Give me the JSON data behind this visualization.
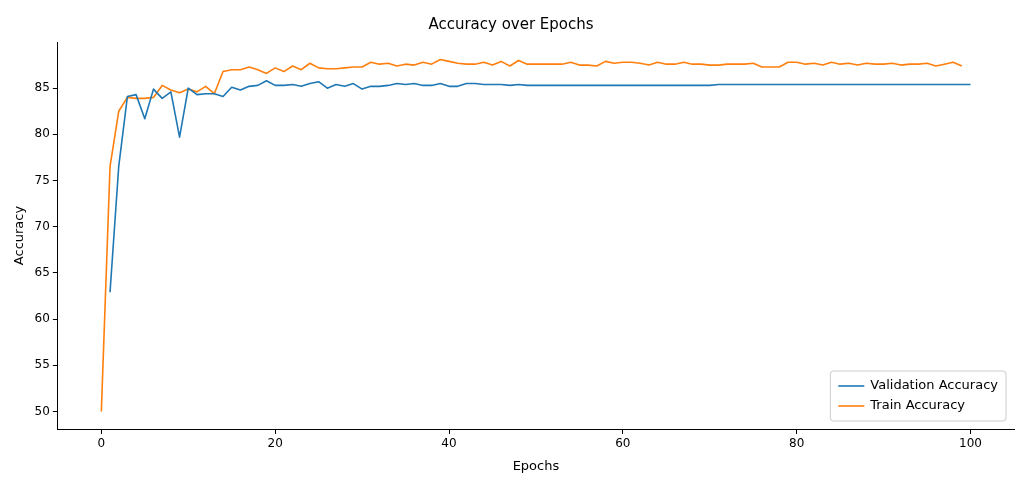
{
  "chart_data": {
    "type": "line",
    "title": "Accuracy over Epochs",
    "xlabel": "Epochs",
    "ylabel": "Accuracy",
    "xlim": [
      -5,
      105
    ],
    "xticks": [
      0,
      20,
      40,
      60,
      80,
      100
    ],
    "ylim": [
      48.1,
      90
    ],
    "yticks": [
      50,
      55,
      60,
      65,
      70,
      75,
      80,
      85
    ],
    "grid": false,
    "legend": "bottom right",
    "marker": "none",
    "line_style": "solid",
    "series": [
      {
        "name": "Validation Accuracy",
        "color": "#1f77b4",
        "x": [
          1,
          2,
          3,
          4,
          5,
          6,
          7,
          8,
          9,
          10,
          11,
          12,
          13,
          14,
          15,
          16,
          17,
          18,
          19,
          20,
          21,
          22,
          23,
          24,
          25,
          26,
          27,
          28,
          29,
          30,
          31,
          32,
          33,
          34,
          35,
          36,
          37,
          38,
          39,
          40,
          41,
          42,
          43,
          44,
          45,
          46,
          47,
          48,
          49,
          50,
          60,
          70,
          71,
          80,
          90,
          100
        ],
        "values": [
          62.9,
          76.5,
          84.1,
          84.3,
          81.7,
          84.9,
          83.9,
          84.6,
          79.7,
          85.0,
          84.3,
          84.4,
          84.4,
          84.1,
          85.1,
          84.8,
          85.2,
          85.3,
          85.8,
          85.3,
          85.3,
          85.4,
          85.2,
          85.5,
          85.7,
          85.0,
          85.4,
          85.2,
          85.5,
          84.9,
          85.2,
          85.2,
          85.3,
          85.5,
          85.4,
          85.5,
          85.3,
          85.3,
          85.5,
          85.2,
          85.2,
          85.5,
          85.5,
          85.4,
          85.4,
          85.4,
          85.3,
          85.4,
          85.3,
          85.3,
          85.3,
          85.3,
          85.4,
          85.4,
          85.4,
          85.4
        ]
      },
      {
        "name": "Train Accuracy",
        "color": "#ff7f0e",
        "x": [
          0,
          1,
          2,
          3,
          4,
          5,
          6,
          7,
          8,
          9,
          10,
          11,
          12,
          13,
          14,
          15,
          16,
          17,
          18,
          19,
          20,
          21,
          22,
          23,
          24,
          25,
          26,
          27,
          28,
          29,
          30,
          31,
          32,
          33,
          34,
          35,
          36,
          37,
          38,
          39,
          40,
          41,
          42,
          43,
          44,
          45,
          46,
          47,
          48,
          49,
          50,
          52,
          53,
          54,
          55,
          56,
          57,
          58,
          59,
          60,
          61,
          62,
          63,
          64,
          65,
          66,
          67,
          68,
          69,
          70,
          71,
          72,
          73,
          74,
          75,
          76,
          77,
          78,
          79,
          80,
          81,
          82,
          83,
          84,
          85,
          86,
          87,
          88,
          89,
          90,
          91,
          92,
          93,
          94,
          95,
          96,
          97,
          98,
          99
        ],
        "values": [
          50.0,
          76.5,
          82.5,
          84.0,
          83.9,
          83.9,
          84.0,
          85.3,
          84.8,
          84.5,
          84.9,
          84.6,
          85.2,
          84.4,
          86.8,
          87.0,
          87.0,
          87.3,
          87.0,
          86.6,
          87.2,
          86.8,
          87.4,
          87.0,
          87.7,
          87.2,
          87.1,
          87.1,
          87.2,
          87.3,
          87.3,
          87.8,
          87.6,
          87.7,
          87.4,
          87.6,
          87.5,
          87.8,
          87.6,
          88.1,
          87.9,
          87.7,
          87.6,
          87.6,
          87.8,
          87.5,
          87.9,
          87.4,
          88.0,
          87.6,
          87.6,
          87.6,
          87.6,
          87.8,
          87.5,
          87.5,
          87.4,
          87.9,
          87.7,
          87.8,
          87.8,
          87.7,
          87.5,
          87.8,
          87.6,
          87.6,
          87.8,
          87.6,
          87.6,
          87.5,
          87.5,
          87.6,
          87.6,
          87.6,
          87.7,
          87.3,
          87.3,
          87.3,
          87.8,
          87.8,
          87.6,
          87.7,
          87.5,
          87.8,
          87.6,
          87.7,
          87.5,
          87.7,
          87.6,
          87.6,
          87.7,
          87.5,
          87.6,
          87.6,
          87.7,
          87.4,
          87.6,
          87.8,
          87.4
        ]
      }
    ]
  }
}
